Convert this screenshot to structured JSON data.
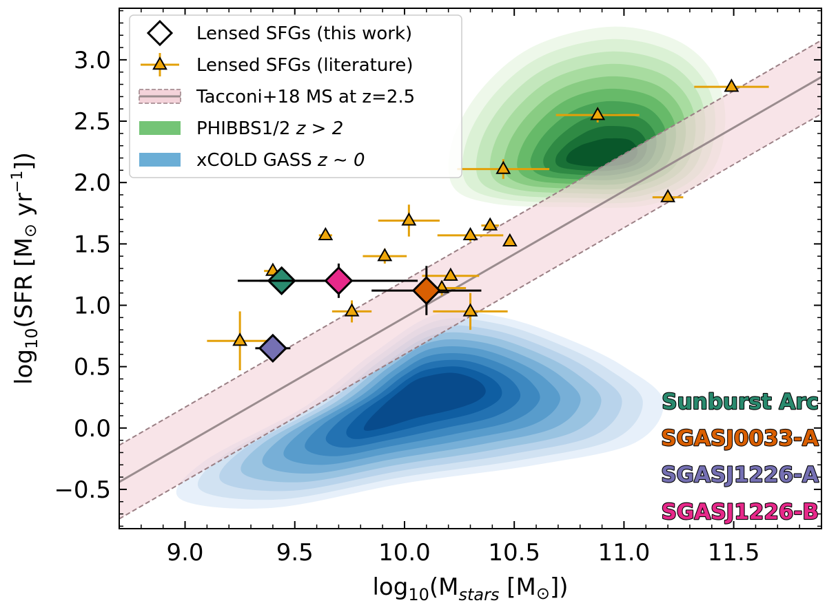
{
  "chart_data": {
    "type": "scatter",
    "xlabel": "log₁₀(M_stars [M⊙])",
    "xlabel_parts": {
      "prefix": "log",
      "sub": "10",
      "pre": "(M",
      "italic_sub": "stars",
      "post": " [M",
      "sun": "⊙",
      "end": "])"
    },
    "ylabel": "log₁₀(SFR [M⊙ yr⁻¹])",
    "ylabel_parts": {
      "prefix": "log",
      "sub": "10",
      "pre": "(SFR [M",
      "sun": "⊙",
      "mid": " yr",
      "sup": "−1",
      "end": "])"
    },
    "xlim": [
      8.7,
      11.9
    ],
    "ylim": [
      -0.82,
      3.42
    ],
    "xticks": [
      9.0,
      9.5,
      10.0,
      10.5,
      11.0,
      11.5
    ],
    "xtick_labels": [
      "9.0",
      "9.5",
      "10.0",
      "10.5",
      "11.0",
      "11.5"
    ],
    "yticks": [
      -0.5,
      0.0,
      0.5,
      1.0,
      1.5,
      2.0,
      2.5,
      3.0
    ],
    "ytick_labels": [
      "−0.5",
      "0.0",
      "0.5",
      "1.0",
      "1.5",
      "2.0",
      "2.5",
      "3.0"
    ],
    "grid": false,
    "legend_position": "top-left",
    "legend": [
      {
        "label": "Lensed SFGs (this work)",
        "marker": "diamond"
      },
      {
        "label": "Lensed SFGs (literature)",
        "marker": "triangle-errorbar"
      },
      {
        "label": "Tacconi+18 MS at z=2.5",
        "marker": "band-line"
      },
      {
        "label_prefix": "PHIBBS1/2 ",
        "label_math": "z > 2",
        "marker": "green-patch"
      },
      {
        "label_prefix": "xCOLD GASS ",
        "label_math": "z ∼ 0",
        "marker": "blue-patch"
      }
    ],
    "main_sequence": {
      "x": [
        8.7,
        11.9
      ],
      "y": [
        -0.44,
        2.86
      ],
      "scatter_dex": 0.3
    },
    "this_work": [
      {
        "name": "Sunburst Arc",
        "x": 9.44,
        "y": 1.2,
        "xerr": 0.2,
        "yerr": 0.0,
        "color": "#2a8a6e"
      },
      {
        "name": "SGASJ0033-A",
        "x": 10.1,
        "y": 1.12,
        "xerr": 0.25,
        "yerr": 0.2,
        "color": "#d95f02"
      },
      {
        "name": "SGASJ1226-A",
        "x": 9.4,
        "y": 0.65,
        "xerr": 0.08,
        "yerr": 0.0,
        "color": "#7570b3"
      },
      {
        "name": "SGASJ1226-B",
        "x": 9.7,
        "y": 1.2,
        "xerr": 0.36,
        "yerr": 0.14,
        "color": "#e7298a"
      }
    ],
    "literature": [
      {
        "x": 9.25,
        "y": 0.71,
        "xerr": 0.15,
        "yerr": 0.24
      },
      {
        "x": 9.4,
        "y": 1.28,
        "xerr": 0.04,
        "yerr": 0.04
      },
      {
        "x": 9.64,
        "y": 1.57,
        "xerr": 0.03,
        "yerr": 0.04
      },
      {
        "x": 9.76,
        "y": 0.95,
        "xerr": 0.09,
        "yerr": 0.09
      },
      {
        "x": 9.91,
        "y": 1.4,
        "xerr": 0.1,
        "yerr": 0.06
      },
      {
        "x": 10.02,
        "y": 1.69,
        "xerr": 0.14,
        "yerr": 0.13
      },
      {
        "x": 10.17,
        "y": 1.14,
        "xerr": 0.11,
        "yerr": 0.06
      },
      {
        "x": 10.21,
        "y": 1.24,
        "xerr": 0.13,
        "yerr": 0.04
      },
      {
        "x": 10.3,
        "y": 1.57,
        "xerr": 0.15,
        "yerr": 0.05
      },
      {
        "x": 10.3,
        "y": 0.95,
        "xerr": 0.17,
        "yerr": 0.15
      },
      {
        "x": 10.39,
        "y": 1.65,
        "xerr": 0.04,
        "yerr": 0.04
      },
      {
        "x": 10.45,
        "y": 2.11,
        "xerr": 0.21,
        "yerr": 0.08
      },
      {
        "x": 10.48,
        "y": 1.52,
        "xerr": 0.0,
        "yerr": 0.0
      },
      {
        "x": 10.88,
        "y": 2.55,
        "xerr": 0.19,
        "yerr": 0.06
      },
      {
        "x": 11.2,
        "y": 1.88,
        "xerr": 0.07,
        "yerr": 0.0
      },
      {
        "x": 11.49,
        "y": 2.78,
        "xerr": 0.17,
        "yerr": 0.02
      }
    ],
    "density_contours": [
      {
        "name": "PHIBBS1/2 z > 2",
        "colors": [
          "#eef8ea",
          "#dbf1d5",
          "#c3e7bc",
          "#a8dca0",
          "#89cc83",
          "#67ba69",
          "#48a356",
          "#2f8a44",
          "#197036",
          "#09572a"
        ],
        "center": [
          10.92,
          2.24
        ],
        "shape": "green"
      },
      {
        "name": "xCOLD GASS z ∼ 0",
        "colors": [
          "#e7f0fa",
          "#d1e2f2",
          "#b8d3eb",
          "#99c3e1",
          "#77afd7",
          "#589ccc",
          "#3d88c0",
          "#2372b2",
          "#0f5ea2",
          "#084b8c"
        ],
        "center": [
          10.1,
          0.22
        ],
        "shape": "blue"
      }
    ],
    "annotations": [
      {
        "text": "Sunburst Arc",
        "color": "#2a8a6e"
      },
      {
        "text": "SGASJ0033-A",
        "color": "#d95f02"
      },
      {
        "text": "SGASJ1226-A",
        "color": "#7570b3"
      },
      {
        "text": "SGASJ1226-B",
        "color": "#e7298a"
      }
    ],
    "colors": {
      "errorbar": "#e3a008",
      "triangle": "#f0a70a",
      "band": "#f4d3da",
      "ms_line": "#9a8c8e",
      "ms_dash": "#9a7f84"
    }
  }
}
